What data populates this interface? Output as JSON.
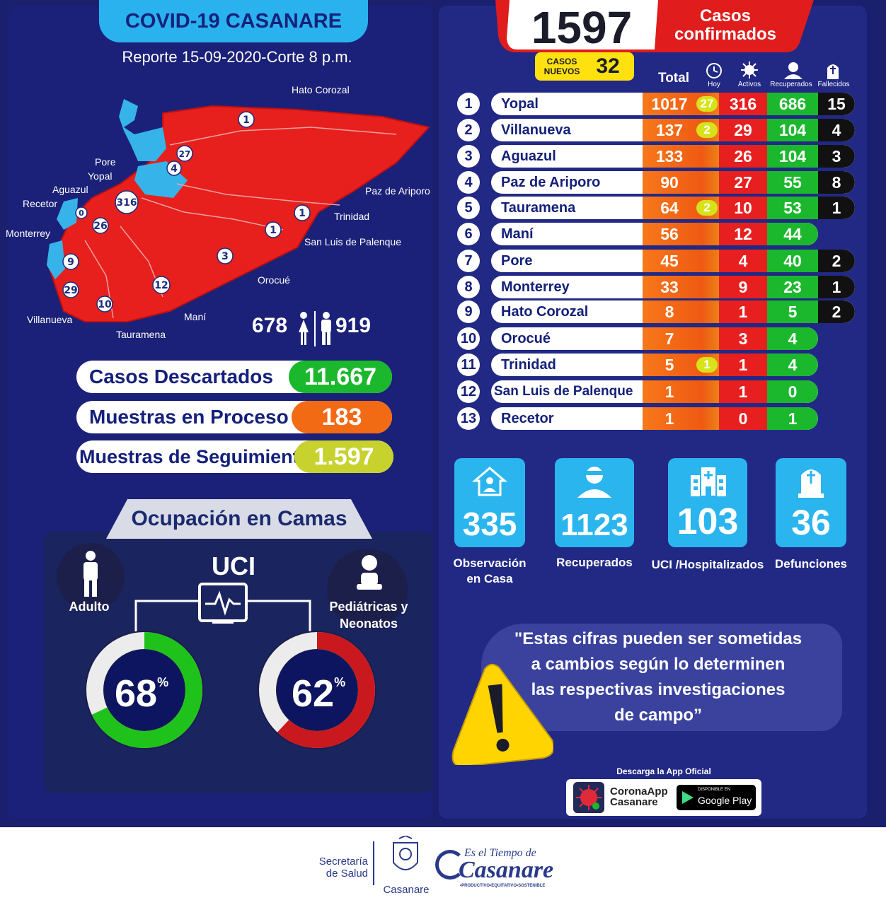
{
  "title": "COVID-19 CASANARE",
  "report": "Reporte 15-09-2020-Corte 8 p.m.",
  "map": {
    "municipios": [
      "Hato Corozal",
      "Pore",
      "Yopal",
      "Aguazul",
      "Recetor",
      "Monterrey",
      "Paz de Ariporo",
      "Trinidad",
      "San Luis de Palenque",
      "Orocué",
      "Villanueva",
      "Tauramena",
      "Maní"
    ],
    "markers": [
      "1",
      "27",
      "4",
      "316",
      "0",
      "26",
      "1",
      "1",
      "3",
      "9",
      "29",
      "12",
      "10"
    ]
  },
  "gender": {
    "female": "678",
    "male": "919"
  },
  "stats": {
    "descartados": {
      "label": "Casos  Descartados",
      "value": "11.667",
      "color": "#1bb82d"
    },
    "proceso": {
      "label": "Muestras en Proceso",
      "value": "183",
      "color": "#f36a15"
    },
    "seguimiento": {
      "label": "Muestras de Seguimiento",
      "value": "1.597",
      "color": "#c8d22e"
    }
  },
  "camas": {
    "title": "Ocupación en Camas",
    "uci": "UCI",
    "adulto": {
      "label": "Adulto",
      "value": "68",
      "unit": "%",
      "fraction": 0.68
    },
    "pediatricas": {
      "label1": "Pediátricas y",
      "label2": "Neonatos",
      "value": "62",
      "unit": "%",
      "fraction": 0.62
    }
  },
  "header": {
    "total": "1597",
    "casos": "Casos",
    "confirmados": "confirmados",
    "casos_nuevos_label1": "CASOS",
    "casos_nuevos_label2": "NUEVOS",
    "casos_nuevos": "32"
  },
  "columns": {
    "total": "Total",
    "hoy": "Hoy",
    "activos": "Activos",
    "recuperados": "Recuperados",
    "fallecidos": "Fallecidos"
  },
  "rows": [
    {
      "n": "1",
      "name": "Yopal",
      "total": "1017",
      "hoy": "27",
      "activos": "316",
      "recuperados": "686",
      "fallecidos": "15"
    },
    {
      "n": "2",
      "name": "Villanueva",
      "total": "137",
      "hoy": "2",
      "activos": "29",
      "recuperados": "104",
      "fallecidos": "4"
    },
    {
      "n": "3",
      "name": "Aguazul",
      "total": "133",
      "hoy": "",
      "activos": "26",
      "recuperados": "104",
      "fallecidos": "3"
    },
    {
      "n": "4",
      "name": "Paz de  Ariporo",
      "total": "90",
      "hoy": "",
      "activos": "27",
      "recuperados": "55",
      "fallecidos": "8"
    },
    {
      "n": "5",
      "name": "Tauramena",
      "total": "64",
      "hoy": "2",
      "activos": "10",
      "recuperados": "53",
      "fallecidos": "1"
    },
    {
      "n": "6",
      "name": "Maní",
      "total": "56",
      "hoy": "",
      "activos": "12",
      "recuperados": "44",
      "fallecidos": ""
    },
    {
      "n": "7",
      "name": "Pore",
      "total": "45",
      "hoy": "",
      "activos": "4",
      "recuperados": "40",
      "fallecidos": "2"
    },
    {
      "n": "8",
      "name": "Monterrey",
      "total": "33",
      "hoy": "",
      "activos": "9",
      "recuperados": "23",
      "fallecidos": "1"
    },
    {
      "n": "9",
      "name": "Hato Corozal",
      "total": "8",
      "hoy": "",
      "activos": "1",
      "recuperados": "5",
      "fallecidos": "2"
    },
    {
      "n": "10",
      "name": "Orocué",
      "total": "7",
      "hoy": "",
      "activos": "3",
      "recuperados": "4",
      "fallecidos": ""
    },
    {
      "n": "11",
      "name": "Trinidad",
      "total": "5",
      "hoy": "1",
      "activos": "1",
      "recuperados": "4",
      "fallecidos": ""
    },
    {
      "n": "12",
      "name": "San Luis de Palenque",
      "total": "1",
      "hoy": "",
      "activos": "1",
      "recuperados": "0",
      "fallecidos": ""
    },
    {
      "n": "13",
      "name": "Recetor",
      "total": "1",
      "hoy": "",
      "activos": "0",
      "recuperados": "1",
      "fallecidos": ""
    }
  ],
  "cards": [
    {
      "value": "335",
      "label1": "Observación",
      "label2": "en Casa",
      "icon": "house-person-icon"
    },
    {
      "value": "1123",
      "label1": "Recuperados",
      "label2": "",
      "icon": "recovered-person-icon"
    },
    {
      "value": "103",
      "label1": "UCI /Hospitalizados",
      "label2": "",
      "icon": "hospital-icon"
    },
    {
      "value": "36",
      "label1": "Defunciones",
      "label2": "",
      "icon": "tombstone-icon"
    }
  ],
  "quote": {
    "l1": "\"Estas cifras pueden ser sometidas",
    "l2": "a cambios según lo determinen",
    "l3": "las respectivas investigaciones",
    "l4": "de campo”"
  },
  "app": {
    "download": "Descarga la App Oficial",
    "name1": "CoronaApp",
    "name2": "Casanare",
    "store_small": "DISPONIBLE EN",
    "store": "Google Play"
  },
  "footer": {
    "sec1": "Secretaría",
    "sec2": "de Salud",
    "gob": "Casanare",
    "tiempo1": "Es el Tiempo de",
    "tiempo2": "Casanare",
    "tagline": "•PRODUCTIVO•EQUITATIVO•SOSTENIBLE"
  },
  "colors": {
    "navy": "#1b2178",
    "red": "#e82020",
    "orange": "#f36a15",
    "green": "#1bb82d",
    "yellow": "#ffe10f",
    "cyan": "#2bb5ee"
  }
}
